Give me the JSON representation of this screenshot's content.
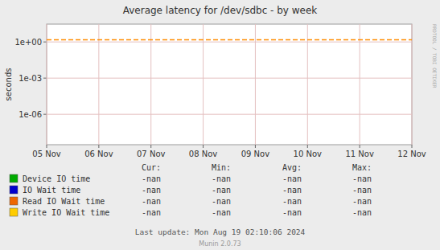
{
  "chart_data": {
    "type": "line",
    "title": "Average latency for /dev/sdbc - by week",
    "y_label": "seconds",
    "categories": [
      "05 Nov",
      "06 Nov",
      "07 Nov",
      "08 Nov",
      "09 Nov",
      "10 Nov",
      "11 Nov",
      "12 Nov"
    ],
    "series": [
      {
        "name": "Device IO time",
        "color": "#00aa00",
        "values": [
          null,
          null,
          null,
          null,
          null,
          null,
          null,
          null
        ]
      },
      {
        "name": "IO Wait time",
        "color": "#0000cc",
        "values": [
          null,
          null,
          null,
          null,
          null,
          null,
          null,
          null
        ]
      },
      {
        "name": "Read IO Wait time",
        "color": "#ee6600",
        "values": [
          null,
          null,
          null,
          null,
          null,
          null,
          null,
          null
        ]
      },
      {
        "name": "Write IO Wait time",
        "color": "#ffcc00",
        "values": [
          null,
          null,
          null,
          null,
          null,
          null,
          null,
          null
        ]
      }
    ],
    "ylim": [
      3e-09,
      30
    ],
    "yticks": [
      {
        "value": 1e-06,
        "label": "1e-06"
      },
      {
        "value": 0.001,
        "label": "1e-03"
      },
      {
        "value": 1,
        "label": "1e+00"
      }
    ],
    "log": "y",
    "grid": true,
    "legend": "bottom",
    "hlines": [
      {
        "value": 1.5,
        "color": "#ff8c00",
        "line_style": "dashed"
      }
    ],
    "table": {
      "headers": [
        "Cur:",
        "Min:",
        "Avg:",
        "Max:"
      ],
      "rows": [
        [
          "-nan",
          "-nan",
          "-nan",
          "-nan"
        ],
        [
          "-nan",
          "-nan",
          "-nan",
          "-nan"
        ],
        [
          "-nan",
          "-nan",
          "-nan",
          "-nan"
        ],
        [
          "-nan",
          "-nan",
          "-nan",
          "-nan"
        ]
      ]
    },
    "footer": "Last update: Mon Aug 19 02:10:06 2024",
    "credit": "Munin 2.0.73",
    "watermark": "RRDTOOL / TOBI OETIKER"
  }
}
